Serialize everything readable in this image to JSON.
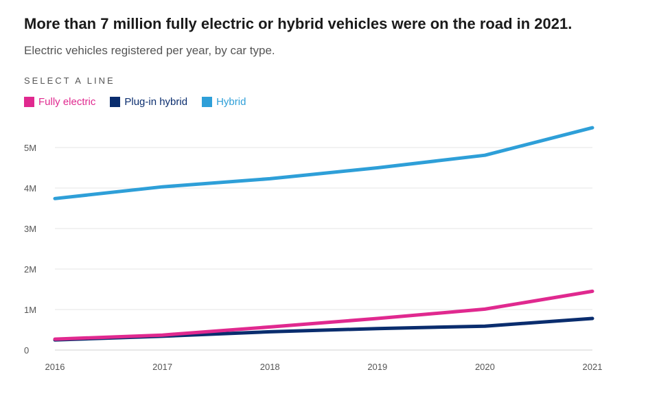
{
  "title": "More than 7 million fully electric or hybrid vehicles were on the road in 2021.",
  "subtitle": "Electric vehicles registered per year, by car type.",
  "select_label": "SELECT A LINE",
  "legend": [
    {
      "label": "Fully electric",
      "color": "#e0298f"
    },
    {
      "label": "Plug-in hybrid",
      "color": "#0a2d6e"
    },
    {
      "label": "Hybrid",
      "color": "#2e9fd8"
    }
  ],
  "chart_data": {
    "type": "line",
    "title": "More than 7 million fully electric or hybrid vehicles were on the road in 2021.",
    "subtitle": "Electric vehicles registered per year, by car type.",
    "xlabel": "",
    "ylabel": "",
    "x": [
      2016,
      2017,
      2018,
      2019,
      2020,
      2021
    ],
    "ylim": [
      0,
      5000000
    ],
    "yticks": [
      0,
      1000000,
      2000000,
      3000000,
      4000000,
      5000000
    ],
    "ytick_labels": [
      "0",
      "1M",
      "2M",
      "3M",
      "4M",
      "5M"
    ],
    "xtick_labels": [
      "2016",
      "2017",
      "2018",
      "2019",
      "2020",
      "2021"
    ],
    "grid": true,
    "legend_position": "top-left",
    "series": [
      {
        "name": "Fully electric",
        "color": "#e0298f",
        "values": [
          270000,
          370000,
          570000,
          780000,
          1010000,
          1450000
        ]
      },
      {
        "name": "Plug-in hybrid",
        "color": "#0a2d6e",
        "values": [
          250000,
          340000,
          450000,
          530000,
          590000,
          780000
        ]
      },
      {
        "name": "Hybrid",
        "color": "#2e9fd8",
        "values": [
          3740000,
          4030000,
          4230000,
          4500000,
          4810000,
          5490000
        ]
      }
    ]
  }
}
